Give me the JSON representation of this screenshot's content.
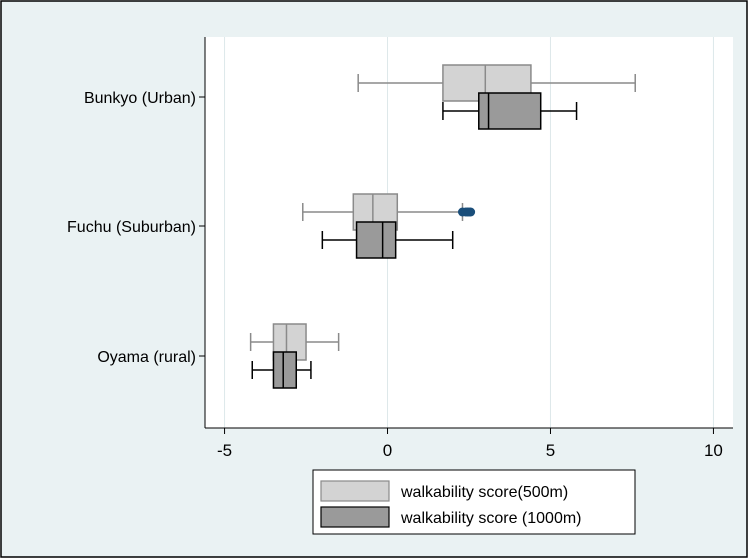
{
  "chart_data": {
    "type": "boxplot",
    "orientation": "horizontal",
    "categories": [
      "Bunkyo (Urban)",
      "Fuchu (Suburban)",
      "Oyama (rural)"
    ],
    "series": [
      {
        "name": "walkability score(500m)",
        "color": "#d3d3d3",
        "whisker_color": "#8a8a8a",
        "boxes": [
          {
            "category": "Bunkyo (Urban)",
            "whisker_low": -0.9,
            "q1": 1.7,
            "median": 3.0,
            "q3": 4.4,
            "whisker_high": 7.6,
            "outliers": []
          },
          {
            "category": "Fuchu (Suburban)",
            "whisker_low": -2.6,
            "q1": -1.05,
            "median": -0.45,
            "q3": 0.3,
            "whisker_high": 2.3,
            "outliers": [
              2.3,
              2.4,
              2.45,
              2.5,
              2.55
            ]
          },
          {
            "category": "Oyama (rural)",
            "whisker_low": -4.2,
            "q1": -3.5,
            "median": -3.1,
            "q3": -2.5,
            "whisker_high": -1.5,
            "outliers": []
          }
        ]
      },
      {
        "name": "walkability score (1000m)",
        "color": "#9a9a9a",
        "whisker_color": "#000000",
        "boxes": [
          {
            "category": "Bunkyo (Urban)",
            "whisker_low": 1.7,
            "q1": 2.8,
            "median": 3.1,
            "q3": 4.7,
            "whisker_high": 5.8,
            "outliers": []
          },
          {
            "category": "Fuchu (Suburban)",
            "whisker_low": -2.0,
            "q1": -0.95,
            "median": -0.15,
            "q3": 0.25,
            "whisker_high": 2.0,
            "outliers": []
          },
          {
            "category": "Oyama (rural)",
            "whisker_low": -4.15,
            "q1": -3.5,
            "median": -3.2,
            "q3": -2.8,
            "whisker_high": -2.35,
            "outliers": []
          }
        ]
      }
    ],
    "outlier_color": "#1a4e7a",
    "xlim": [
      -5.6,
      10.6
    ],
    "xticks": [
      -5,
      0,
      5,
      10
    ],
    "xtick_labels": [
      "-5",
      "0",
      "5",
      "10"
    ],
    "grid": true,
    "legend_position": "bottom",
    "title": "",
    "xlabel": "",
    "ylabel": "",
    "background": "#eaf2f3",
    "plot_background": "#ffffff",
    "grid_color": "#dde8ea"
  }
}
